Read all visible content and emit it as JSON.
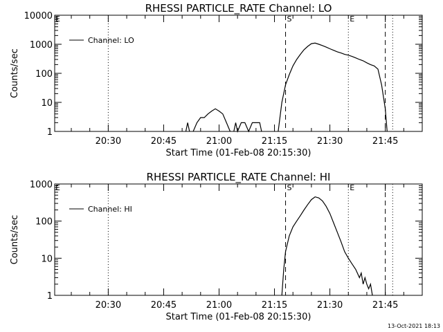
{
  "chart_data": [
    {
      "type": "line",
      "title": "RHESSI PARTICLE_RATE Channel: LO",
      "xlabel": "Start Time (01-Feb-08 20:15:30)",
      "ylabel": "Counts/sec",
      "yscale": "log",
      "ylim": [
        1,
        10000
      ],
      "y_ticks": [
        {
          "v": 1,
          "label": "1"
        },
        {
          "v": 10,
          "label": "10"
        },
        {
          "v": 100,
          "label": "100"
        },
        {
          "v": 1000,
          "label": "1000"
        },
        {
          "v": 10000,
          "label": "10000"
        }
      ],
      "xlim": [
        "20:15:30",
        "21:55:00"
      ],
      "x_ticks": [
        {
          "t": "20:30",
          "label": "20:30"
        },
        {
          "t": "20:45",
          "label": "20:45"
        },
        {
          "t": "21:00",
          "label": "21:00"
        },
        {
          "t": "21:15",
          "label": "21:15"
        },
        {
          "t": "21:30",
          "label": "21:30"
        },
        {
          "t": "21:45",
          "label": "21:45"
        }
      ],
      "grid": false,
      "legend": {
        "position": "top-left",
        "entries": [
          "Channel: LO"
        ]
      },
      "markers": [
        {
          "t": "20:30",
          "style": "dotted",
          "label": ""
        },
        {
          "t": "21:18",
          "style": "dashed",
          "label": "S"
        },
        {
          "t": "21:35",
          "style": "dotted",
          "label": "E"
        },
        {
          "t": "21:45",
          "style": "dashed",
          "label": ""
        },
        {
          "t": "21:47",
          "style": "dotted",
          "label": ""
        }
      ],
      "edge_label": "E",
      "series": [
        {
          "name": "Channel: LO",
          "segments": [
            [
              [
                "20:51:00",
                1
              ],
              [
                "20:51:30",
                2
              ],
              [
                "20:52:00",
                1
              ]
            ],
            [
              [
                "20:53:00",
                1
              ],
              [
                "20:54:00",
                2
              ],
              [
                "20:55:00",
                3
              ],
              [
                "20:56:00",
                3
              ],
              [
                "20:57:00",
                4
              ],
              [
                "20:58:00",
                5
              ],
              [
                "20:59:00",
                6
              ],
              [
                "21:00:00",
                5
              ],
              [
                "21:01:00",
                4
              ],
              [
                "21:02:00",
                2
              ],
              [
                "21:03:00",
                1
              ]
            ],
            [
              [
                "21:04:00",
                1
              ],
              [
                "21:04:30",
                2
              ],
              [
                "21:05:00",
                1
              ],
              [
                "21:06:00",
                2
              ],
              [
                "21:07:00",
                2
              ],
              [
                "21:08:00",
                1
              ],
              [
                "21:09:00",
                2
              ],
              [
                "21:10:00",
                2
              ],
              [
                "21:11:00",
                2
              ],
              [
                "21:11:30",
                1
              ]
            ],
            [
              [
                "21:16:00",
                1
              ],
              [
                "21:17:00",
                10
              ],
              [
                "21:18:00",
                40
              ],
              [
                "21:19:00",
                90
              ],
              [
                "21:20:00",
                180
              ],
              [
                "21:21:00",
                300
              ],
              [
                "21:22:00",
                450
              ],
              [
                "21:23:00",
                650
              ],
              [
                "21:24:00",
                850
              ],
              [
                "21:25:00",
                1050
              ],
              [
                "21:26:00",
                1100
              ],
              [
                "21:27:00",
                1000
              ],
              [
                "21:28:00",
                900
              ],
              [
                "21:29:00",
                800
              ],
              [
                "21:30:00",
                700
              ],
              [
                "21:31:00",
                620
              ],
              [
                "21:32:00",
                550
              ],
              [
                "21:33:00",
                500
              ],
              [
                "21:34:00",
                450
              ],
              [
                "21:35:00",
                420
              ],
              [
                "21:36:00",
                380
              ],
              [
                "21:37:00",
                340
              ],
              [
                "21:38:00",
                300
              ],
              [
                "21:39:00",
                270
              ],
              [
                "21:40:00",
                230
              ],
              [
                "21:41:00",
                200
              ],
              [
                "21:42:00",
                180
              ],
              [
                "21:43:00",
                140
              ],
              [
                "21:44:00",
                40
              ],
              [
                "21:45:00",
                6
              ],
              [
                "21:45:30",
                1
              ]
            ]
          ]
        }
      ]
    },
    {
      "type": "line",
      "title": "RHESSI PARTICLE_RATE Channel: HI",
      "xlabel": "Start Time (01-Feb-08 20:15:30)",
      "ylabel": "Counts/sec",
      "yscale": "log",
      "ylim": [
        1,
        1000
      ],
      "y_ticks": [
        {
          "v": 1,
          "label": "1"
        },
        {
          "v": 10,
          "label": "10"
        },
        {
          "v": 100,
          "label": "100"
        },
        {
          "v": 1000,
          "label": "1000"
        }
      ],
      "xlim": [
        "20:15:30",
        "21:55:00"
      ],
      "x_ticks": [
        {
          "t": "20:30",
          "label": "20:30"
        },
        {
          "t": "20:45",
          "label": "20:45"
        },
        {
          "t": "21:00",
          "label": "21:00"
        },
        {
          "t": "21:15",
          "label": "21:15"
        },
        {
          "t": "21:30",
          "label": "21:30"
        },
        {
          "t": "21:45",
          "label": "21:45"
        }
      ],
      "grid": false,
      "legend": {
        "position": "top-left",
        "entries": [
          "Channel: HI"
        ]
      },
      "markers": [
        {
          "t": "20:30",
          "style": "dotted",
          "label": ""
        },
        {
          "t": "21:18",
          "style": "dashed",
          "label": "S"
        },
        {
          "t": "21:35",
          "style": "dotted",
          "label": "E"
        },
        {
          "t": "21:45",
          "style": "dashed",
          "label": ""
        },
        {
          "t": "21:47",
          "style": "dotted",
          "label": ""
        }
      ],
      "edge_label": "E",
      "series": [
        {
          "name": "Channel: HI",
          "segments": [
            [
              [
                "21:17:00",
                1
              ],
              [
                "21:17:30",
                5
              ],
              [
                "21:18:00",
                15
              ],
              [
                "21:19:00",
                40
              ],
              [
                "21:20:00",
                70
              ],
              [
                "21:21:00",
                100
              ],
              [
                "21:22:00",
                140
              ],
              [
                "21:23:00",
                200
              ],
              [
                "21:24:00",
                280
              ],
              [
                "21:25:00",
                380
              ],
              [
                "21:26:00",
                450
              ],
              [
                "21:27:00",
                420
              ],
              [
                "21:28:00",
                350
              ],
              [
                "21:29:00",
                250
              ],
              [
                "21:30:00",
                160
              ],
              [
                "21:31:00",
                90
              ],
              [
                "21:32:00",
                50
              ],
              [
                "21:33:00",
                28
              ],
              [
                "21:34:00",
                15
              ],
              [
                "21:35:00",
                10
              ],
              [
                "21:36:00",
                7
              ],
              [
                "21:37:00",
                5
              ],
              [
                "21:38:00",
                3
              ],
              [
                "21:38:30",
                4
              ],
              [
                "21:39:00",
                2
              ],
              [
                "21:39:30",
                3
              ],
              [
                "21:40:00",
                2
              ],
              [
                "21:40:30",
                1.5
              ],
              [
                "21:41:00",
                2
              ],
              [
                "21:41:30",
                1
              ]
            ]
          ]
        }
      ]
    }
  ],
  "footer": "13-Oct-2021 18:13"
}
